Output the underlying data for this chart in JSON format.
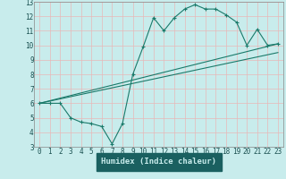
{
  "xlabel": "Humidex (Indice chaleur)",
  "bg_color": "#c8ecec",
  "axis_bg_color": "#1a6060",
  "grid_color": "#e8b8b8",
  "line_color": "#1a7a6a",
  "tick_color": "#1a5050",
  "xlim": [
    -0.5,
    23.5
  ],
  "ylim": [
    3,
    13
  ],
  "xticks": [
    0,
    1,
    2,
    3,
    4,
    5,
    6,
    7,
    8,
    9,
    10,
    11,
    12,
    13,
    14,
    15,
    16,
    17,
    18,
    19,
    20,
    21,
    22,
    23
  ],
  "yticks": [
    3,
    4,
    5,
    6,
    7,
    8,
    9,
    10,
    11,
    12,
    13
  ],
  "line1_x": [
    0,
    1,
    2,
    3,
    4,
    5,
    6,
    7,
    8,
    9,
    10,
    11,
    12,
    13,
    14,
    15,
    16,
    17,
    18,
    19,
    20,
    21,
    22,
    23
  ],
  "line1_y": [
    6.0,
    6.0,
    6.0,
    5.0,
    4.7,
    4.6,
    4.4,
    3.2,
    4.6,
    8.0,
    9.9,
    11.9,
    11.0,
    11.9,
    12.5,
    12.8,
    12.5,
    12.5,
    12.1,
    11.6,
    10.0,
    11.1,
    10.0,
    10.1
  ],
  "line2_x": [
    0,
    23
  ],
  "line2_y": [
    6.0,
    10.1
  ],
  "line3_x": [
    0,
    23
  ],
  "line3_y": [
    6.0,
    9.5
  ],
  "figsize": [
    3.2,
    2.0
  ],
  "dpi": 100
}
